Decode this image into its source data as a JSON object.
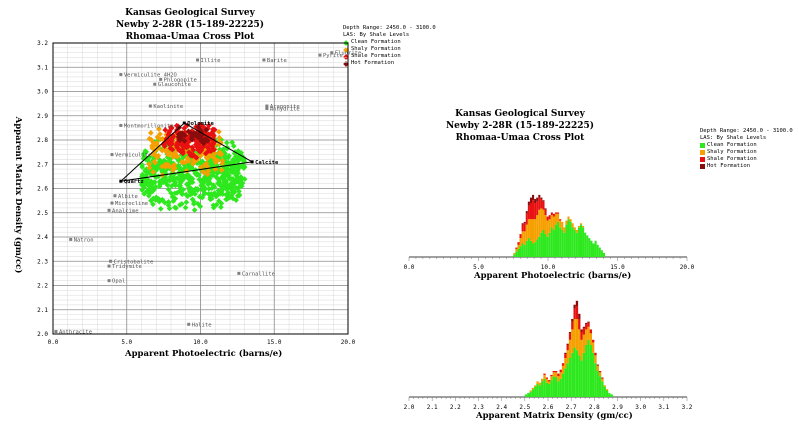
{
  "colors": {
    "clean": "#2ee81e",
    "shaly": "#f5a000",
    "shale": "#e81010",
    "hot": "#8a0d0d",
    "grid": "#b8b8b8",
    "mineral": "#808080"
  },
  "crossplot": {
    "title": [
      "Kansas Geological Survey",
      "Newby 2-28R (15-189-22225)",
      "Rhomaa-Umaa Cross Plot"
    ],
    "header": [
      "Depth Range: 2450.0 - 3100.0",
      "LAS: By Shale Levels"
    ],
    "legend": [
      "Clean Formation",
      "Shaly Formation",
      "Shale Formation",
      "Hot Formation"
    ],
    "xlabel": "Apparent Photoelectric (barns/e)",
    "ylabel": "Apparent Matrix Density (gm/cc)"
  },
  "pe_hist": {
    "title": [
      "Kansas Geological Survey",
      "Newby 2-28R (15-189-22225)",
      "Rhomaa-Umaa Cross Plot"
    ],
    "header": [
      "Depth Range: 2450.0 - 3100.0",
      "LAS: By Shale Levels"
    ],
    "legend": [
      "Clean Formation",
      "Shaly Formation",
      "Shale Formation",
      "Hot Formation"
    ],
    "xlabel": "Apparent Photoelectric (barns/e)"
  },
  "rho_hist": {
    "xlabel": "Apparent Matrix Density (gm/cc)"
  },
  "chart_data": [
    {
      "type": "scatter",
      "xlim": [
        0,
        20
      ],
      "ylim": [
        2.0,
        3.2
      ],
      "x_ticks": [
        "0.0",
        "5.0",
        "10.0",
        "15.0",
        "20.0"
      ],
      "y_ticks": [
        "2.0",
        "2.1",
        "2.2",
        "2.3",
        "2.4",
        "2.5",
        "2.6",
        "2.7",
        "2.8",
        "2.9",
        "3.0",
        "3.1",
        "3.2"
      ],
      "grid": true,
      "legend_position": "top-right",
      "minerals": [
        {
          "name": "Illite",
          "x": 9.8,
          "y": 3.13
        },
        {
          "name": "Barite",
          "x": 14.3,
          "y": 3.13
        },
        {
          "name": "Pyrite",
          "x": 18.1,
          "y": 3.15
        },
        {
          "name": "Fluorite",
          "x": 18.9,
          "y": 3.16
        },
        {
          "name": "Vermiculite 4H2O",
          "x": 4.6,
          "y": 3.07
        },
        {
          "name": "Phlogopite",
          "x": 7.3,
          "y": 3.05
        },
        {
          "name": "Glauconite",
          "x": 6.9,
          "y": 3.03
        },
        {
          "name": "Kaolinite",
          "x": 6.6,
          "y": 2.94
        },
        {
          "name": "Aragonite",
          "x": 14.5,
          "y": 2.94
        },
        {
          "name": "Anhydrite",
          "x": 14.5,
          "y": 2.93
        },
        {
          "name": "Montmorillonite",
          "x": 4.6,
          "y": 2.86
        },
        {
          "name": "Dolomite",
          "x": 8.9,
          "y": 2.87
        },
        {
          "name": "Vermiculite",
          "x": 4.0,
          "y": 2.74
        },
        {
          "name": "Calcite",
          "x": 13.5,
          "y": 2.71
        },
        {
          "name": "Quartz",
          "x": 4.6,
          "y": 2.63
        },
        {
          "name": "Albite",
          "x": 4.2,
          "y": 2.57
        },
        {
          "name": "Microcline",
          "x": 4.0,
          "y": 2.54
        },
        {
          "name": "Analcime",
          "x": 3.8,
          "y": 2.51
        },
        {
          "name": "Natron",
          "x": 1.2,
          "y": 2.39
        },
        {
          "name": "Cristobalite",
          "x": 3.9,
          "y": 2.3
        },
        {
          "name": "Tridymite",
          "x": 3.8,
          "y": 2.28
        },
        {
          "name": "Opal",
          "x": 3.8,
          "y": 2.22
        },
        {
          "name": "Carnallite",
          "x": 12.6,
          "y": 2.25
        },
        {
          "name": "Halite",
          "x": 9.2,
          "y": 2.04
        },
        {
          "name": "Anthracite",
          "x": 0.2,
          "y": 2.01
        }
      ],
      "triangle": [
        {
          "x": 4.6,
          "y": 2.63
        },
        {
          "x": 8.9,
          "y": 2.87
        },
        {
          "x": 13.5,
          "y": 2.71
        }
      ],
      "clusters": {
        "Clean Formation": {
          "x_range": [
            6.0,
            13.0
          ],
          "y_range": [
            2.5,
            2.83
          ]
        },
        "Shaly Formation": {
          "x_range": [
            6.5,
            11.5
          ],
          "y_range": [
            2.65,
            2.85
          ]
        },
        "Shale Formation": {
          "x_range": [
            7.5,
            11.0
          ],
          "y_range": [
            2.72,
            2.87
          ]
        },
        "Hot Formation": {
          "x_range": [
            8.5,
            10.5
          ],
          "y_range": [
            2.78,
            2.86
          ]
        }
      }
    },
    {
      "type": "bar",
      "xlim": [
        0,
        20
      ],
      "x_ticks": [
        "0.0",
        "5.0",
        "10.0",
        "15.0",
        "20.0"
      ],
      "bin_start": 7.5,
      "bin_width": 0.15,
      "series": [
        {
          "name": "Clean Formation",
          "values": [
            2,
            4,
            6,
            8,
            10,
            9,
            12,
            14,
            12,
            10,
            11,
            13,
            15,
            18,
            20,
            17,
            15,
            18,
            22,
            20,
            24,
            26,
            22,
            20,
            18,
            24,
            28,
            26,
            22,
            20,
            18,
            22,
            24,
            22,
            18,
            16,
            14,
            12,
            10,
            12,
            9,
            7,
            5,
            3
          ]
        },
        {
          "name": "Shaly Formation",
          "values": [
            1,
            2,
            3,
            6,
            9,
            10,
            12,
            14,
            16,
            18,
            17,
            18,
            20,
            18,
            15,
            14,
            12,
            10,
            9,
            10,
            8,
            6,
            5,
            6,
            4,
            3,
            2,
            2,
            3,
            2,
            2,
            1,
            1,
            1,
            0,
            0,
            0,
            0,
            0,
            0,
            0,
            0,
            0,
            0
          ]
        },
        {
          "name": "Shale Formation",
          "values": [
            0,
            1,
            2,
            3,
            5,
            6,
            8,
            10,
            12,
            14,
            12,
            10,
            9,
            7,
            6,
            4,
            3,
            3,
            2,
            2,
            1,
            1,
            1,
            0,
            0,
            0,
            0,
            0,
            0,
            0,
            0,
            0,
            0,
            0,
            0,
            0,
            0,
            0,
            0,
            0,
            0,
            0,
            0,
            0
          ]
        },
        {
          "name": "Hot Formation",
          "values": [
            0,
            0,
            0,
            0,
            1,
            1,
            2,
            3,
            4,
            4,
            3,
            3,
            2,
            1,
            1,
            1,
            0,
            0,
            0,
            0,
            0,
            0,
            0,
            0,
            0,
            0,
            0,
            0,
            0,
            0,
            0,
            0,
            0,
            0,
            0,
            0,
            0,
            0,
            0,
            0,
            0,
            0,
            0,
            0
          ]
        }
      ]
    },
    {
      "type": "bar",
      "xlim": [
        2.0,
        3.2
      ],
      "x_ticks": [
        "2.0",
        "2.1",
        "2.2",
        "2.3",
        "2.4",
        "2.5",
        "2.6",
        "2.7",
        "2.8",
        "2.9",
        "3.0",
        "3.1",
        "3.2"
      ],
      "bin_start": 2.5,
      "bin_width": 0.01,
      "series": [
        {
          "name": "Clean Formation",
          "values": [
            2,
            3,
            4,
            6,
            8,
            10,
            9,
            12,
            14,
            11,
            10,
            13,
            16,
            15,
            12,
            14,
            18,
            22,
            26,
            30,
            34,
            38,
            36,
            32,
            28,
            34,
            40,
            44,
            40,
            34,
            26,
            20,
            16,
            12,
            8,
            5,
            3,
            2
          ]
        },
        {
          "name": "Shaly Formation",
          "values": [
            0,
            0,
            1,
            1,
            1,
            2,
            2,
            2,
            3,
            3,
            2,
            3,
            3,
            4,
            4,
            5,
            6,
            8,
            10,
            14,
            18,
            22,
            24,
            20,
            16,
            14,
            12,
            10,
            9,
            8,
            6,
            4,
            3,
            2,
            1,
            1,
            0,
            0
          ]
        },
        {
          "name": "Shale Formation",
          "values": [
            0,
            0,
            0,
            0,
            0,
            0,
            0,
            0,
            1,
            1,
            1,
            1,
            1,
            1,
            2,
            2,
            2,
            3,
            4,
            5,
            6,
            8,
            10,
            8,
            6,
            5,
            4,
            3,
            3,
            2,
            2,
            1,
            1,
            1,
            0,
            0,
            0,
            0
          ]
        },
        {
          "name": "Hot Formation",
          "values": [
            0,
            0,
            0,
            0,
            0,
            0,
            0,
            0,
            0,
            0,
            0,
            0,
            0,
            0,
            0,
            0,
            0,
            1,
            1,
            1,
            2,
            3,
            4,
            4,
            2,
            1,
            1,
            1,
            0,
            0,
            0,
            0,
            0,
            0,
            0,
            0,
            0,
            0
          ]
        }
      ]
    }
  ]
}
